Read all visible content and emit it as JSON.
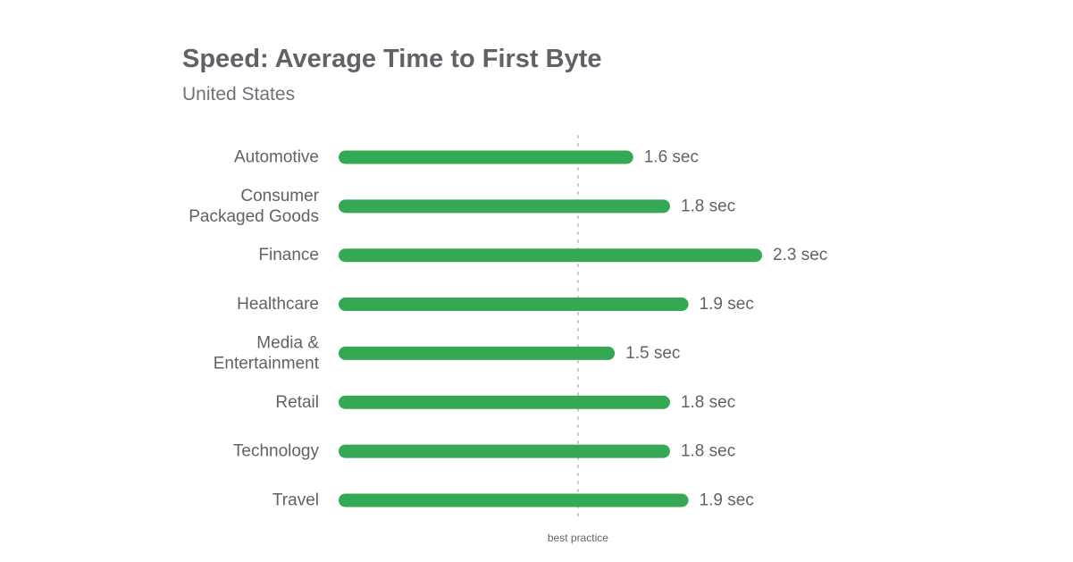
{
  "chart_data": {
    "type": "bar",
    "orientation": "horizontal",
    "title": "Speed: Average Time to First Byte",
    "subtitle": "United States",
    "categories": [
      [
        "Automotive"
      ],
      [
        "Consumer",
        "Packaged Goods"
      ],
      [
        "Finance"
      ],
      [
        "Healthcare"
      ],
      [
        "Media &",
        "Entertainment"
      ],
      [
        "Retail"
      ],
      [
        "Technology"
      ],
      [
        "Travel"
      ]
    ],
    "values": [
      1.6,
      1.8,
      2.3,
      1.9,
      1.5,
      1.8,
      1.8,
      1.9
    ],
    "value_labels": [
      "1.6 sec",
      "1.8 sec",
      "2.3 sec",
      "1.9 sec",
      "1.5 sec",
      "1.8 sec",
      "1.8 sec",
      "1.9 sec"
    ],
    "bar_color": "#34a853",
    "reference_line": {
      "value": 1.3,
      "label": "best practice",
      "style": "dotted",
      "color": "#c4c7c5"
    },
    "xlim": [
      0,
      2.3
    ],
    "grid": false,
    "legend": "none"
  }
}
